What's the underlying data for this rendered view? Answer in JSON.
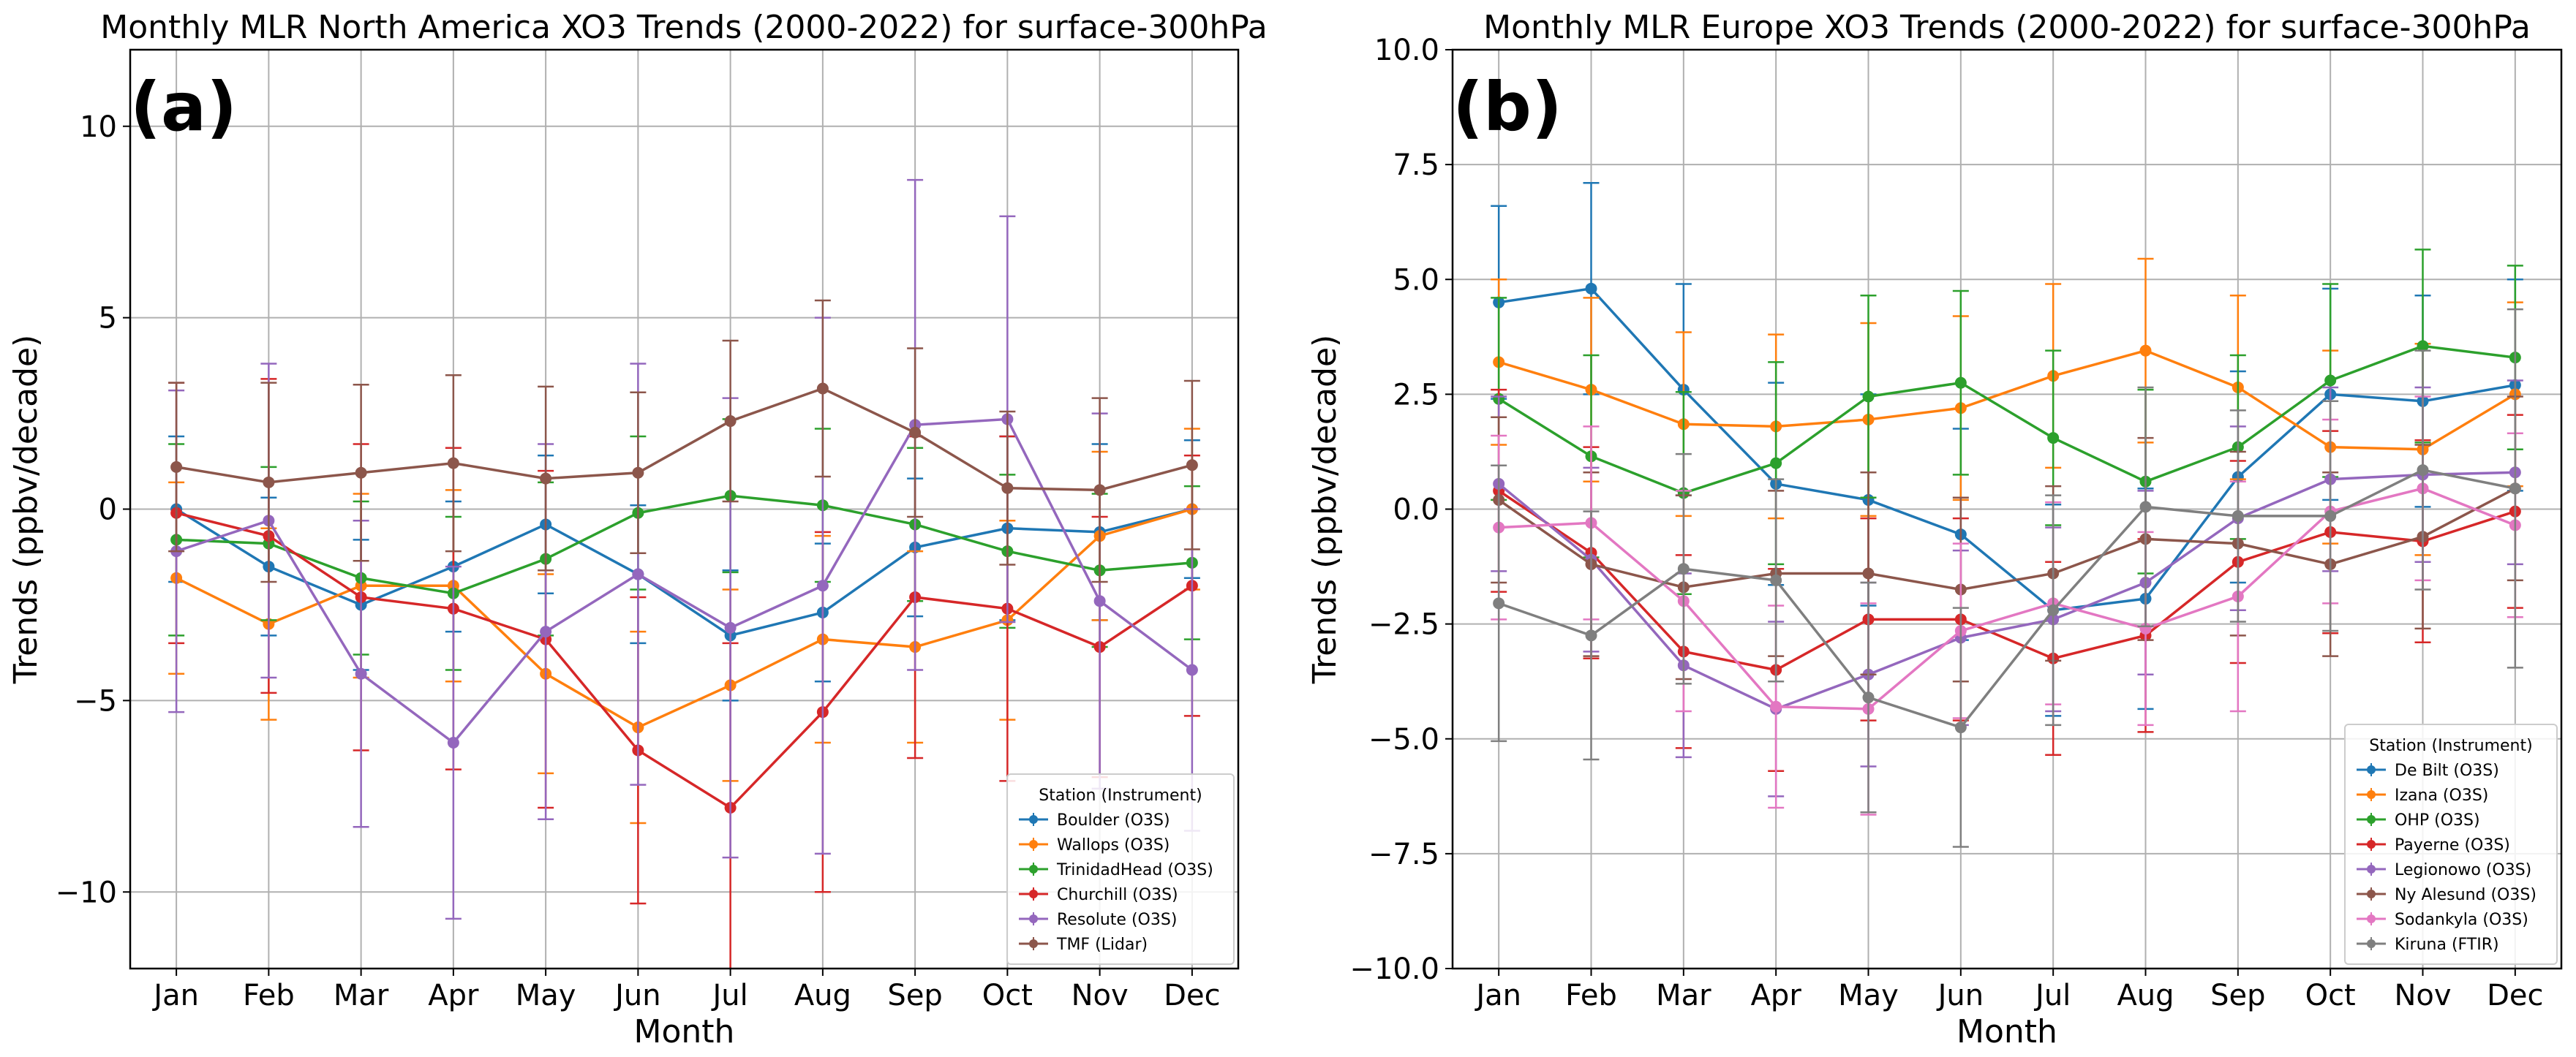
{
  "chart_data": [
    {
      "type": "line",
      "title": "Monthly MLR North America XO3 Trends (2000-2022) for surface-300hPa",
      "panel_label": "(a)",
      "xlabel": "Month",
      "ylabel": "Trends (ppbv/decade)",
      "categories": [
        "Jan",
        "Feb",
        "Mar",
        "Apr",
        "May",
        "Jun",
        "Jul",
        "Aug",
        "Sep",
        "Oct",
        "Nov",
        "Dec"
      ],
      "ylim": [
        -12,
        12
      ],
      "yticks": [
        -10,
        -5,
        0,
        5,
        10
      ],
      "ytick_labels": [
        "−10",
        "−5",
        "0",
        "5",
        "10"
      ],
      "grid": true,
      "legend_title": "Station (Instrument)",
      "legend_position": "lower-right",
      "series": [
        {
          "name": "Boulder (O3S)",
          "color": "#1f77b4",
          "values": [
            0.0,
            -1.5,
            -2.5,
            -1.5,
            -0.4,
            -1.7,
            -3.3,
            -2.7,
            -1.0,
            -0.5,
            -0.6,
            0.0
          ],
          "err": [
            1.9,
            1.8,
            1.7,
            1.7,
            1.8,
            1.8,
            1.7,
            1.8,
            1.8,
            2.4,
            2.3,
            1.8
          ]
        },
        {
          "name": "Wallops (O3S)",
          "color": "#ff7f0e",
          "values": [
            -1.8,
            -3.0,
            -2.0,
            -2.0,
            -4.3,
            -5.7,
            -4.6,
            -3.4,
            -3.6,
            -2.9,
            -0.7,
            0.0
          ],
          "err": [
            2.5,
            2.5,
            2.4,
            2.5,
            2.6,
            2.5,
            2.5,
            2.7,
            2.5,
            2.6,
            2.2,
            2.1
          ]
        },
        {
          "name": "TrinidadHead (O3S)",
          "color": "#2ca02c",
          "values": [
            -0.8,
            -0.9,
            -1.8,
            -2.2,
            -1.3,
            -0.1,
            0.35,
            0.1,
            -0.4,
            -1.1,
            -1.6,
            -1.4
          ],
          "err": [
            2.5,
            2.0,
            2.0,
            2.0,
            2.0,
            2.0,
            2.0,
            2.0,
            2.0,
            2.0,
            2.0,
            2.0
          ]
        },
        {
          "name": "Churchill (O3S)",
          "color": "#d62728",
          "values": [
            -0.1,
            -0.7,
            -2.3,
            -2.6,
            -3.4,
            -6.3,
            -7.8,
            -5.3,
            -2.3,
            -2.6,
            -3.6,
            -2.0
          ],
          "err": [
            3.4,
            4.1,
            4.0,
            4.2,
            4.4,
            4.0,
            4.3,
            4.7,
            4.2,
            4.5,
            3.4,
            3.4
          ]
        },
        {
          "name": "Resolute (O3S)",
          "color": "#9467bd",
          "values": [
            -1.1,
            -0.3,
            -4.3,
            -6.1,
            -3.2,
            -1.7,
            -3.1,
            -2.0,
            2.2,
            2.35,
            -2.4,
            -4.2
          ],
          "err": [
            4.2,
            4.1,
            4.0,
            4.6,
            4.9,
            5.5,
            6.0,
            7.0,
            6.4,
            5.3,
            4.9,
            4.2
          ]
        },
        {
          "name": "TMF (Lidar)",
          "color": "#8c564b",
          "values": [
            1.1,
            0.7,
            0.95,
            1.2,
            0.8,
            0.95,
            2.3,
            3.15,
            2.0,
            0.55,
            0.5,
            1.15
          ],
          "err": [
            2.2,
            2.6,
            2.3,
            2.3,
            2.4,
            2.1,
            2.1,
            2.3,
            2.2,
            2.0,
            2.4,
            2.2
          ]
        }
      ]
    },
    {
      "type": "line",
      "title": "Monthly MLR Europe XO3 Trends (2000-2022) for surface-300hPa",
      "panel_label": "(b)",
      "xlabel": "Month",
      "ylabel": "Trends (ppbv/decade)",
      "categories": [
        "Jan",
        "Feb",
        "Mar",
        "Apr",
        "May",
        "Jun",
        "Jul",
        "Aug",
        "Sep",
        "Oct",
        "Nov",
        "Dec"
      ],
      "ylim": [
        -10,
        10
      ],
      "yticks": [
        -10,
        -7.5,
        -5,
        -2.5,
        0,
        2.5,
        5,
        7.5,
        10
      ],
      "ytick_labels": [
        "−10.0",
        "−7.5",
        "−5.0",
        "−2.5",
        "0.0",
        "2.5",
        "5.0",
        "7.5",
        "10.0"
      ],
      "grid": true,
      "legend_title": "Station (Instrument)",
      "legend_position": "lower-right",
      "series": [
        {
          "name": "De Bilt (O3S)",
          "color": "#1f77b4",
          "values": [
            4.5,
            4.8,
            2.6,
            0.55,
            0.2,
            -0.55,
            -2.2,
            -1.95,
            0.7,
            2.5,
            2.35,
            2.7
          ],
          "err": [
            2.1,
            2.3,
            2.3,
            2.2,
            2.3,
            2.3,
            2.3,
            2.4,
            2.3,
            2.3,
            2.3,
            2.3
          ]
        },
        {
          "name": "Izana (O3S)",
          "color": "#ff7f0e",
          "values": [
            3.2,
            2.6,
            1.85,
            1.8,
            1.95,
            2.2,
            2.9,
            3.45,
            2.65,
            1.35,
            1.3,
            2.5
          ],
          "err": [
            1.8,
            2.0,
            2.0,
            2.0,
            2.1,
            2.0,
            2.0,
            2.0,
            2.0,
            2.1,
            2.3,
            2.0
          ]
        },
        {
          "name": "OHP (O3S)",
          "color": "#2ca02c",
          "values": [
            2.4,
            1.15,
            0.35,
            1.0,
            2.45,
            2.75,
            1.55,
            0.6,
            1.35,
            2.8,
            3.55,
            3.3
          ],
          "err": [
            2.2,
            2.2,
            2.2,
            2.2,
            2.2,
            2.0,
            1.9,
            2.0,
            2.0,
            2.1,
            2.1,
            2.0
          ]
        },
        {
          "name": "Payerne (O3S)",
          "color": "#d62728",
          "values": [
            0.4,
            -0.95,
            -3.1,
            -3.5,
            -2.4,
            -2.4,
            -3.25,
            -2.75,
            -1.15,
            -0.5,
            -0.7,
            -0.05
          ],
          "err": [
            2.2,
            2.3,
            2.1,
            2.2,
            2.2,
            2.2,
            2.1,
            2.1,
            2.2,
            2.2,
            2.2,
            2.1
          ]
        },
        {
          "name": "Legionowo (O3S)",
          "color": "#9467bd",
          "values": [
            0.55,
            -1.1,
            -3.4,
            -4.35,
            -3.6,
            -2.8,
            -2.4,
            -1.6,
            -0.2,
            0.65,
            0.75,
            0.8
          ],
          "err": [
            1.9,
            2.0,
            2.0,
            1.9,
            2.0,
            1.9,
            2.0,
            2.0,
            2.0,
            2.0,
            1.9,
            2.0
          ]
        },
        {
          "name": "Ny Alesund (O3S)",
          "color": "#8c564b",
          "values": [
            0.2,
            -1.2,
            -1.7,
            -1.4,
            -1.4,
            -1.75,
            -1.4,
            -0.65,
            -0.75,
            -1.2,
            -0.6,
            0.45
          ],
          "err": [
            1.8,
            2.0,
            2.0,
            1.8,
            2.2,
            2.0,
            1.9,
            2.2,
            2.0,
            2.0,
            2.0,
            2.0
          ]
        },
        {
          "name": "Sodankyla (O3S)",
          "color": "#e377c2",
          "values": [
            -0.4,
            -0.3,
            -2.0,
            -4.3,
            -4.35,
            -2.65,
            -2.05,
            -2.6,
            -1.9,
            -0.05,
            0.45,
            -0.35
          ],
          "err": [
            2.0,
            2.1,
            2.4,
            2.2,
            2.3,
            1.9,
            2.2,
            2.1,
            2.5,
            2.0,
            2.0,
            2.0
          ]
        },
        {
          "name": "Kiruna (FTIR)",
          "color": "#7f7f7f",
          "values": [
            -2.05,
            -2.75,
            -1.3,
            -1.55,
            -4.1,
            -4.75,
            -2.2,
            0.05,
            -0.15,
            -0.15,
            0.85,
            0.45
          ],
          "err": [
            3.0,
            2.7,
            2.5,
            2.2,
            2.5,
            2.6,
            2.5,
            2.6,
            2.3,
            2.5,
            2.6,
            3.9
          ]
        }
      ]
    }
  ]
}
